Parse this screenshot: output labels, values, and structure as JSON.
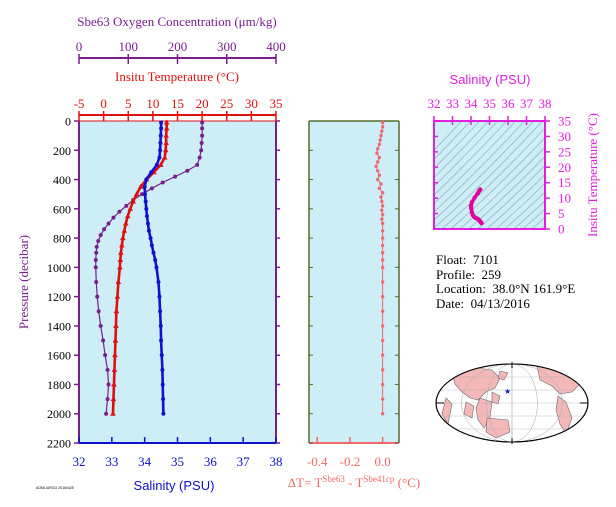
{
  "colors": {
    "panel_bg": "#cdeef6",
    "oxygen": "#7a1e8e",
    "temperature": "#e01010",
    "salinity": "#1010d0",
    "delta_t": "#f06a6a",
    "ts_axis": "#e020e0",
    "ts_line": "#e000a0",
    "pressure_axis": "#7a1e8e",
    "land": "#f4b8b8",
    "ocean": "#ffffff"
  },
  "info": {
    "float_label": "Float:",
    "float": "7101",
    "profile_label": "Profile:",
    "profile": "259",
    "location_label": "Location:",
    "location": "38.0°N  161.9°E",
    "date_label": "Date:",
    "date": "04/13/2016"
  },
  "footer_tag": "AOML/ARGO 20160425",
  "chart_data": [
    {
      "type": "line",
      "panel": "profiles",
      "ylabel": "Pressure (decibar)",
      "ylim": [
        2200,
        0
      ],
      "yticks": [
        0,
        200,
        400,
        600,
        800,
        1000,
        1200,
        1400,
        1600,
        1800,
        2000,
        2200
      ],
      "axes": {
        "oxygen": {
          "label": "Sbe63 Oxygen Concentration (μm/kg)",
          "range": [
            0,
            400
          ],
          "ticks": [
            0,
            100,
            200,
            300,
            400
          ]
        },
        "temperature": {
          "label": "Insitu Temperature (°C)",
          "range": [
            -5,
            35
          ],
          "ticks": [
            -5,
            0,
            5,
            10,
            15,
            20,
            25,
            30,
            35
          ]
        },
        "salinity": {
          "label": "Salinity (PSU)",
          "range": [
            32,
            38
          ],
          "ticks": [
            32,
            33,
            34,
            35,
            36,
            37,
            38
          ]
        }
      },
      "series": [
        {
          "name": "Oxygen",
          "axis": "oxygen",
          "marker": "circle",
          "pressure": [
            10,
            50,
            100,
            150,
            200,
            250,
            300,
            340,
            380,
            420,
            460,
            500,
            540,
            580,
            620,
            660,
            700,
            740,
            780,
            820,
            860,
            900,
            950,
            1000,
            1100,
            1200,
            1300,
            1400,
            1500,
            1600,
            1700,
            1800,
            1900,
            2000
          ],
          "values": [
            250,
            250,
            250,
            249,
            248,
            245,
            240,
            220,
            195,
            170,
            148,
            128,
            110,
            96,
            82,
            70,
            60,
            51,
            44,
            39,
            36,
            35,
            34,
            34,
            35,
            37,
            40,
            44,
            49,
            53,
            58,
            60,
            58,
            55
          ]
        },
        {
          "name": "Temperature",
          "axis": "temperature",
          "marker": "triangle",
          "pressure": [
            10,
            50,
            100,
            150,
            200,
            250,
            300,
            350,
            400,
            450,
            500,
            550,
            600,
            650,
            700,
            750,
            800,
            850,
            900,
            950,
            1000,
            1100,
            1200,
            1300,
            1400,
            1500,
            1600,
            1700,
            1800,
            1900,
            2000
          ],
          "values": [
            12.8,
            12.8,
            12.7,
            12.7,
            12.6,
            12.4,
            11.6,
            10.2,
            8.7,
            7.5,
            6.7,
            6.0,
            5.4,
            4.9,
            4.5,
            4.2,
            3.9,
            3.7,
            3.5,
            3.4,
            3.3,
            3.0,
            2.8,
            2.6,
            2.5,
            2.4,
            2.3,
            2.2,
            2.1,
            2.0,
            1.9
          ]
        },
        {
          "name": "Salinity",
          "axis": "salinity",
          "marker": "circle",
          "pressure": [
            10,
            50,
            100,
            150,
            200,
            250,
            300,
            350,
            400,
            450,
            500,
            550,
            600,
            650,
            700,
            750,
            800,
            850,
            900,
            950,
            1000,
            1100,
            1200,
            1300,
            1400,
            1500,
            1600,
            1700,
            1800,
            1900,
            2000
          ],
          "values": [
            34.5,
            34.5,
            34.49,
            34.48,
            34.47,
            34.45,
            34.37,
            34.2,
            34.05,
            34.0,
            34.01,
            34.03,
            34.05,
            34.07,
            34.1,
            34.13,
            34.18,
            34.22,
            34.27,
            34.32,
            34.36,
            34.42,
            34.45,
            34.47,
            34.49,
            34.5,
            34.52,
            34.54,
            34.55,
            34.56,
            34.57
          ]
        }
      ]
    },
    {
      "type": "scatter",
      "panel": "delta_t",
      "xlabel": "ΔT= T",
      "xlabel_sup1": "Sbe63",
      "xlabel_mid": " - T",
      "xlabel_sup2": "Sbe41cp",
      "xlabel_unit": " (°C)",
      "xlim": [
        -0.45,
        0.1
      ],
      "xticks": [
        -0.4,
        -0.2,
        0.0
      ],
      "xtick_labels": [
        "-0.4",
        "-0.2",
        "0.0"
      ],
      "pressure": [
        10,
        40,
        70,
        100,
        130,
        160,
        190,
        220,
        250,
        280,
        310,
        340,
        370,
        400,
        430,
        460,
        490,
        520,
        550,
        580,
        610,
        640,
        670,
        700,
        750,
        800,
        850,
        900,
        950,
        1000,
        1100,
        1200,
        1300,
        1400,
        1500,
        1600,
        1700,
        1800,
        1900,
        2000
      ],
      "values": [
        0,
        0,
        -0.005,
        -0.01,
        -0.015,
        -0.02,
        -0.03,
        -0.035,
        -0.02,
        -0.03,
        -0.04,
        -0.03,
        -0.02,
        -0.03,
        -0.01,
        -0.02,
        0,
        -0.01,
        -0.005,
        0,
        -0.005,
        0,
        -0.005,
        0,
        0,
        0,
        0,
        0,
        0,
        0,
        0,
        0,
        0,
        0,
        0,
        0,
        0,
        0,
        0,
        0
      ]
    },
    {
      "type": "line",
      "panel": "ts_diagram",
      "title": "Salinity (PSU)",
      "xlabel": "Salinity (PSU)",
      "ylabel": "Insitu Temperature (°C)",
      "xlim": [
        32,
        38
      ],
      "ylim": [
        0,
        35
      ],
      "xticks": [
        32,
        33,
        34,
        35,
        36,
        37,
        38
      ],
      "yticks": [
        0,
        5,
        10,
        15,
        20,
        25,
        30,
        35
      ],
      "salinity": [
        34.5,
        34.45,
        34.37,
        34.2,
        34.05,
        34.0,
        34.01,
        34.05,
        34.1,
        34.18,
        34.27,
        34.36,
        34.42,
        34.47,
        34.5,
        34.54,
        34.57
      ],
      "temperature": [
        12.8,
        12.4,
        11.6,
        10.2,
        8.7,
        7.5,
        6.7,
        5.4,
        4.5,
        3.9,
        3.5,
        3.3,
        3.0,
        2.6,
        2.4,
        2.2,
        1.9
      ]
    }
  ]
}
